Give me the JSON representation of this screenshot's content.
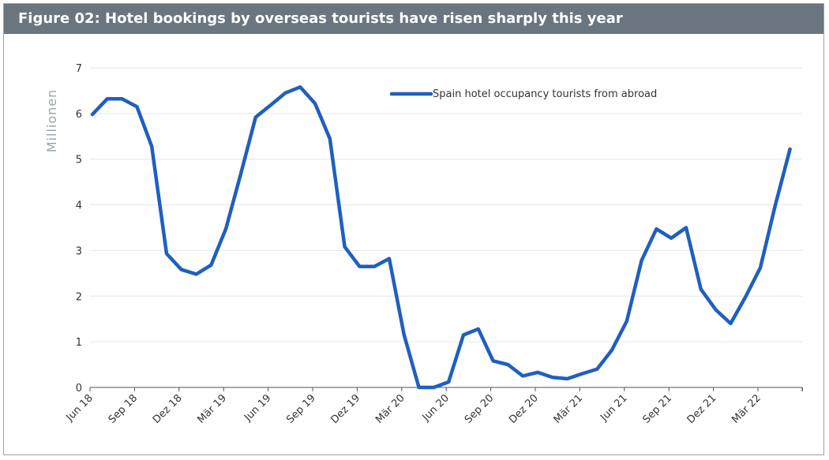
{
  "title": "Figure 02: Hotel bookings by overseas tourists have risen sharply this year",
  "chart_data": {
    "type": "line",
    "title": "Figure 02: Hotel bookings by overseas tourists have risen sharply this year",
    "xlabel": "",
    "ylabel": "Millionen",
    "ylim": [
      0,
      7
    ],
    "yticks": [
      0,
      1,
      2,
      3,
      4,
      5,
      6,
      7
    ],
    "grid": true,
    "legend_position": "top-right",
    "x_tick_labels": [
      "Jun 18",
      "Sep 18",
      "Dez 18",
      "Mär 19",
      "Jun 19",
      "Sep 19",
      "Dez 19",
      "Mär 20",
      "Jun 20",
      "Sep 20",
      "Dez 20",
      "Mär 21",
      "Jun 21",
      "Sep 21",
      "Dez 21",
      "Mär 22"
    ],
    "x": [
      "2018-06",
      "2018-07",
      "2018-08",
      "2018-09",
      "2018-10",
      "2018-11",
      "2018-12",
      "2019-01",
      "2019-02",
      "2019-03",
      "2019-04",
      "2019-05",
      "2019-06",
      "2019-07",
      "2019-08",
      "2019-09",
      "2019-10",
      "2019-11",
      "2019-12",
      "2020-01",
      "2020-02",
      "2020-03",
      "2020-04",
      "2020-05",
      "2020-06",
      "2020-07",
      "2020-08",
      "2020-09",
      "2020-10",
      "2020-11",
      "2020-12",
      "2021-01",
      "2021-02",
      "2021-03",
      "2021-04",
      "2021-05",
      "2021-06",
      "2021-07",
      "2021-08",
      "2021-09",
      "2021-10",
      "2021-11",
      "2021-12",
      "2022-01",
      "2022-02",
      "2022-03",
      "2022-04",
      "2022-05"
    ],
    "series": [
      {
        "name": "Spain hotel occupancy tourists from abroad",
        "color": "#1f5fbf",
        "values": [
          5.98,
          6.32,
          6.32,
          6.15,
          5.28,
          2.93,
          2.58,
          2.48,
          2.68,
          3.48,
          4.68,
          5.92,
          6.18,
          6.45,
          6.58,
          6.22,
          5.45,
          3.08,
          2.65,
          2.65,
          2.82,
          1.15,
          0.0,
          0.0,
          0.12,
          1.15,
          1.28,
          0.58,
          0.5,
          0.25,
          0.33,
          0.22,
          0.19,
          0.3,
          0.4,
          0.82,
          1.45,
          2.78,
          3.47,
          3.27,
          3.5,
          2.15,
          1.7,
          1.4,
          1.98,
          2.62,
          3.98,
          5.22
        ]
      }
    ]
  }
}
